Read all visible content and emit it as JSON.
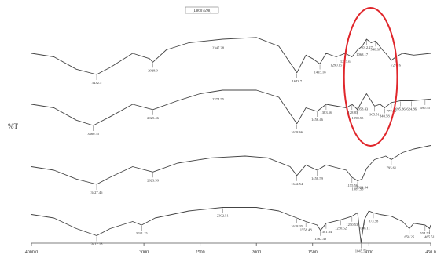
{
  "chart_data": {
    "type": "line",
    "title": "",
    "xlabel": "",
    "ylabel": "%T",
    "x_unit_note": "",
    "xlim": [
      4000,
      450
    ],
    "x_reversed": true,
    "x_ticks": [
      4000,
      3000,
      2500,
      2000,
      1500,
      1000,
      450
    ],
    "x_tick_labels": [
      "4000.0",
      "3000",
      "2500",
      "2000",
      "1500",
      "1000",
      "450.0"
    ],
    "top_label": "[L8607598]",
    "grid": false,
    "legend": "none",
    "highlight": {
      "x_from": 1130,
      "x_to": 880,
      "color": "#e0262b"
    },
    "line_color": "#444444",
    "series": [
      {
        "offset": 0,
        "points": [
          [
            4000,
            0.4
          ],
          [
            3800,
            0.5
          ],
          [
            3600,
            0.85
          ],
          [
            3420,
            1.0
          ],
          [
            3300,
            0.8
          ],
          [
            3100,
            0.4
          ],
          [
            2950,
            0.55
          ],
          [
            2920,
            0.65
          ],
          [
            2800,
            0.3
          ],
          [
            2600,
            0.1
          ],
          [
            2300,
            0.0
          ],
          [
            2000,
            -0.05
          ],
          [
            1800,
            0.2
          ],
          [
            1640,
            0.95
          ],
          [
            1560,
            0.45
          ],
          [
            1500,
            0.55
          ],
          [
            1435,
            0.7
          ],
          [
            1380,
            0.4
          ],
          [
            1290,
            0.5
          ],
          [
            1210,
            0.4
          ],
          [
            1150,
            0.5
          ],
          [
            1100,
            0.3
          ],
          [
            1060,
            0.2
          ],
          [
            1020,
            0.0
          ],
          [
            980,
            0.1
          ],
          [
            940,
            0.05
          ],
          [
            880,
            0.3
          ],
          [
            850,
            0.4
          ],
          [
            800,
            0.6
          ],
          [
            760,
            0.5
          ],
          [
            700,
            0.4
          ],
          [
            600,
            0.45
          ],
          [
            450,
            0.4
          ]
        ],
        "peaks": [
          {
            "x": 3420,
            "label": "3432.5"
          },
          {
            "x": 2920,
            "label": "2928.9"
          },
          {
            "x": 2340,
            "label": "2347.28"
          },
          {
            "x": 1640,
            "label": "1643.7"
          },
          {
            "x": 1435,
            "label": "1435.18"
          },
          {
            "x": 1290,
            "label": "1290.15"
          },
          {
            "x": 1210,
            "label": "1213.6"
          },
          {
            "x": 1060,
            "label": "1068.17"
          },
          {
            "x": 1020,
            "label": "1012.27"
          },
          {
            "x": 940,
            "label": "948.38"
          },
          {
            "x": 760,
            "label": "727.16"
          }
        ]
      },
      {
        "offset": 1,
        "points": [
          [
            4000,
            0.4
          ],
          [
            3800,
            0.5
          ],
          [
            3600,
            0.85
          ],
          [
            3450,
            1.0
          ],
          [
            3300,
            0.75
          ],
          [
            3100,
            0.4
          ],
          [
            2920,
            0.55
          ],
          [
            2700,
            0.3
          ],
          [
            2500,
            0.1
          ],
          [
            2300,
            0.0
          ],
          [
            2000,
            0.0
          ],
          [
            1800,
            0.2
          ],
          [
            1640,
            0.95
          ],
          [
            1560,
            0.5
          ],
          [
            1460,
            0.6
          ],
          [
            1380,
            0.4
          ],
          [
            1200,
            0.5
          ],
          [
            1150,
            0.4
          ],
          [
            1100,
            0.55
          ],
          [
            1060,
            0.3
          ],
          [
            1020,
            0.1
          ],
          [
            980,
            0.3
          ],
          [
            950,
            0.45
          ],
          [
            900,
            0.4
          ],
          [
            860,
            0.5
          ],
          [
            800,
            0.35
          ],
          [
            720,
            0.3
          ],
          [
            620,
            0.3
          ],
          [
            450,
            0.25
          ]
        ],
        "peaks": [
          {
            "x": 3450,
            "label": "3460.35"
          },
          {
            "x": 2920,
            "label": "2925.46"
          },
          {
            "x": 2340,
            "label": "2374.55"
          },
          {
            "x": 1640,
            "label": "1638.66"
          },
          {
            "x": 1460,
            "label": "1456.46"
          },
          {
            "x": 1380,
            "label": "1383.56"
          },
          {
            "x": 1150,
            "label": "1128.83"
          },
          {
            "x": 1100,
            "label": "1098.55"
          },
          {
            "x": 1060,
            "label": "1058.43"
          },
          {
            "x": 950,
            "label": "965.51"
          },
          {
            "x": 860,
            "label": "840.58"
          },
          {
            "x": 800,
            "label": "777.56"
          },
          {
            "x": 720,
            "label": "695.86"
          },
          {
            "x": 620,
            "label": "624.86"
          },
          {
            "x": 500,
            "label": "490.55"
          }
        ]
      },
      {
        "offset": 2,
        "points": [
          [
            4000,
            0.5
          ],
          [
            3800,
            0.6
          ],
          [
            3600,
            0.85
          ],
          [
            3420,
            1.0
          ],
          [
            3300,
            0.8
          ],
          [
            3100,
            0.5
          ],
          [
            2920,
            0.65
          ],
          [
            2700,
            0.4
          ],
          [
            2400,
            0.25
          ],
          [
            2100,
            0.2
          ],
          [
            1900,
            0.25
          ],
          [
            1700,
            0.5
          ],
          [
            1640,
            0.75
          ],
          [
            1560,
            0.45
          ],
          [
            1460,
            0.6
          ],
          [
            1380,
            0.45
          ],
          [
            1200,
            0.6
          ],
          [
            1150,
            0.8
          ],
          [
            1100,
            0.9
          ],
          [
            1060,
            0.85
          ],
          [
            1020,
            0.55
          ],
          [
            950,
            0.3
          ],
          [
            850,
            0.2
          ],
          [
            800,
            0.3
          ],
          [
            700,
            0.1
          ],
          [
            600,
            0.0
          ],
          [
            450,
            -0.1
          ]
        ],
        "peaks": [
          {
            "x": 3420,
            "label": "3427.46"
          },
          {
            "x": 2920,
            "label": "2923.59"
          },
          {
            "x": 1640,
            "label": "1642.54"
          },
          {
            "x": 1460,
            "label": "1458.59"
          },
          {
            "x": 1150,
            "label": "1155.56"
          },
          {
            "x": 1100,
            "label": "1081.58"
          },
          {
            "x": 1060,
            "label": "1024.54"
          },
          {
            "x": 800,
            "label": "795.61"
          }
        ]
      },
      {
        "offset": 3,
        "points": [
          [
            4000,
            0.3
          ],
          [
            3800,
            0.4
          ],
          [
            3600,
            0.7
          ],
          [
            3420,
            0.9
          ],
          [
            3300,
            0.7
          ],
          [
            3100,
            0.5
          ],
          [
            3020,
            0.6
          ],
          [
            2900,
            0.4
          ],
          [
            2600,
            0.2
          ],
          [
            2300,
            0.1
          ],
          [
            2000,
            0.1
          ],
          [
            1800,
            0.2
          ],
          [
            1640,
            0.4
          ],
          [
            1560,
            0.5
          ],
          [
            1460,
            0.6
          ],
          [
            1430,
            0.75
          ],
          [
            1380,
            0.55
          ],
          [
            1250,
            0.45
          ],
          [
            1150,
            0.35
          ],
          [
            1100,
            0.25
          ],
          [
            1070,
            1.1
          ],
          [
            1040,
            0.45
          ],
          [
            1000,
            0.2
          ],
          [
            960,
            0.25
          ],
          [
            900,
            0.3
          ],
          [
            800,
            0.35
          ],
          [
            700,
            0.5
          ],
          [
            640,
            0.7
          ],
          [
            600,
            0.55
          ],
          [
            500,
            0.6
          ],
          [
            460,
            0.7
          ],
          [
            450,
            0.6
          ]
        ],
        "peaks": [
          {
            "x": 3420,
            "label": "3412.18"
          },
          {
            "x": 3020,
            "label": "3031.15"
          },
          {
            "x": 2300,
            "label": "2302.51"
          },
          {
            "x": 1640,
            "label": "1618.35"
          },
          {
            "x": 1560,
            "label": "1558.48"
          },
          {
            "x": 1430,
            "label": "1462.48"
          },
          {
            "x": 1380,
            "label": "1381.64"
          },
          {
            "x": 1250,
            "label": "1250.52"
          },
          {
            "x": 1150,
            "label": "1250.53"
          },
          {
            "x": 1070,
            "label": "1045.52"
          },
          {
            "x": 1040,
            "label": "1008.11"
          },
          {
            "x": 960,
            "label": "873.58"
          },
          {
            "x": 640,
            "label": "658.25"
          },
          {
            "x": 500,
            "label": "554.51"
          },
          {
            "x": 460,
            "label": "465.51"
          }
        ]
      }
    ]
  }
}
